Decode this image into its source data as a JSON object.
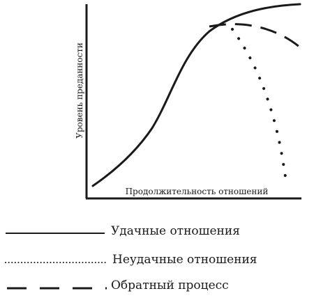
{
  "figure": {
    "ylabel": "Уровень преданности",
    "xlabel": "Продолжительность отношений"
  },
  "legend": {
    "items": [
      {
        "key": "success",
        "label": "Удачные отношения",
        "style": "solid"
      },
      {
        "key": "failure",
        "label": "Неудачные отношения",
        "style": "dotted"
      },
      {
        "key": "reverse",
        "label": "Обратный процесс",
        "style": "dashed"
      }
    ]
  },
  "colors": {
    "ink": "#1a1a1a",
    "background": "#ffffff"
  }
}
